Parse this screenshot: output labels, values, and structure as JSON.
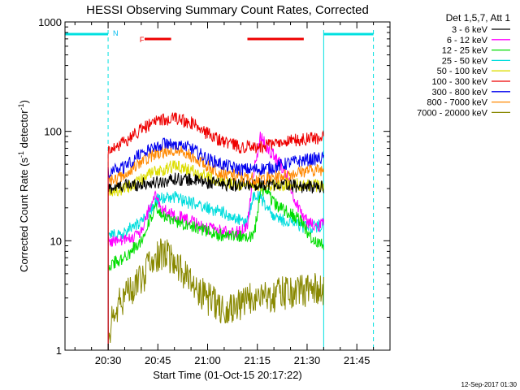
{
  "chart_data": {
    "type": "line",
    "title": "HESSI Observing Summary Count Rates, Corrected",
    "xlabel": "Start Time (01-Oct-15 20:17:22)",
    "ylabel_main": "Corrected Count Rate (s",
    "ylabel_sup1": "-1",
    "ylabel_mid": " detector",
    "ylabel_sup2": "-1",
    "ylabel_end": ")",
    "yscale": "log",
    "ylim": [
      1,
      1000
    ],
    "xlim_min": [
      17,
      92
    ],
    "x_ticks": [
      {
        "min": 30,
        "label": "20:30"
      },
      {
        "min": 45,
        "label": "20:45"
      },
      {
        "min": 60,
        "label": "21:00"
      },
      {
        "min": 75,
        "label": "21:15"
      },
      {
        "min": 90,
        "label": "21:30"
      },
      {
        "min": 105,
        "label": "21:45"
      }
    ],
    "y_ticks": [
      {
        "value": 1,
        "label": "1"
      },
      {
        "value": 10,
        "label": "10"
      },
      {
        "value": 100,
        "label": "100"
      },
      {
        "value": 1000,
        "label": "1000"
      }
    ],
    "legend_title": "Det 1,5,7, Att 1",
    "legend": [
      {
        "label": "3 - 6 keV",
        "color": "#000000"
      },
      {
        "label": "6 - 12 keV",
        "color": "#ff00ff"
      },
      {
        "label": "12 - 25 keV",
        "color": "#00dd00"
      },
      {
        "label": "25 - 50 keV",
        "color": "#00dddd"
      },
      {
        "label": "50 - 100 keV",
        "color": "#dddd00"
      },
      {
        "label": "100 - 300 keV",
        "color": "#ee0000"
      },
      {
        "label": "300 - 800 keV",
        "color": "#0000ee"
      },
      {
        "label": "800 - 7000 keV",
        "color": "#ff8800"
      },
      {
        "label": "7000 - 20000 keV",
        "color": "#888800"
      }
    ],
    "series": [
      {
        "name": "3 - 6 keV",
        "color": "#000000",
        "x": [
          30,
          35,
          40,
          45,
          50,
          55,
          60,
          65,
          70,
          75,
          80,
          85,
          90,
          95
        ],
        "y": [
          30,
          32,
          33,
          34,
          37,
          36,
          34,
          33,
          32,
          33,
          33,
          32,
          31,
          31
        ]
      },
      {
        "name": "6 - 12 keV",
        "color": "#ff00ff",
        "x": [
          30,
          35,
          40,
          42,
          44,
          46,
          50,
          55,
          60,
          65,
          70,
          72,
          74,
          76,
          78,
          80,
          82,
          84,
          86,
          88,
          90,
          92,
          95
        ],
        "y": [
          10,
          10,
          12,
          18,
          26,
          20,
          17,
          15,
          13,
          12,
          12,
          14,
          45,
          90,
          70,
          60,
          50,
          40,
          25,
          18,
          15,
          14,
          14
        ]
      },
      {
        "name": "12 - 25 keV",
        "color": "#00dd00",
        "x": [
          30,
          35,
          40,
          44,
          46,
          50,
          55,
          60,
          65,
          70,
          74,
          76,
          78,
          80,
          82,
          85,
          88,
          90,
          92,
          95
        ],
        "y": [
          6,
          7,
          10,
          20,
          17,
          15,
          14,
          12,
          11,
          11,
          11,
          30,
          28,
          22,
          20,
          18,
          15,
          12,
          10,
          9
        ]
      },
      {
        "name": "25 - 50 keV",
        "color": "#00dddd",
        "x": [
          30,
          35,
          40,
          45,
          50,
          55,
          60,
          65,
          70,
          72,
          74,
          76,
          80,
          85,
          90,
          95
        ],
        "y": [
          11,
          12,
          15,
          24,
          25,
          22,
          20,
          18,
          15,
          15,
          26,
          25,
          16,
          15,
          13,
          14
        ]
      },
      {
        "name": "50 - 100 keV",
        "color": "#dddd00",
        "x": [
          30,
          35,
          40,
          45,
          50,
          55,
          60,
          65,
          70,
          75,
          80,
          85,
          90,
          95
        ],
        "y": [
          28,
          30,
          36,
          44,
          48,
          44,
          38,
          34,
          32,
          31,
          32,
          33,
          32,
          32
        ]
      },
      {
        "name": "100 - 300 keV",
        "color": "#ee0000",
        "x": [
          30,
          35,
          40,
          45,
          50,
          55,
          60,
          65,
          70,
          75,
          80,
          85,
          90,
          95
        ],
        "y": [
          68,
          80,
          105,
          125,
          130,
          120,
          95,
          80,
          72,
          72,
          76,
          82,
          85,
          88
        ]
      },
      {
        "name": "300 - 800 keV",
        "color": "#0000ee",
        "x": [
          30,
          35,
          40,
          45,
          50,
          55,
          60,
          65,
          70,
          75,
          80,
          85,
          90,
          95
        ],
        "y": [
          42,
          48,
          63,
          75,
          78,
          70,
          56,
          49,
          45,
          45,
          47,
          52,
          55,
          57
        ]
      },
      {
        "name": "800 - 7000 keV",
        "color": "#ff8800",
        "x": [
          30,
          35,
          40,
          45,
          50,
          55,
          60,
          65,
          70,
          75,
          80,
          85,
          90,
          95
        ],
        "y": [
          35,
          40,
          52,
          64,
          68,
          60,
          48,
          41,
          38,
          37,
          38,
          41,
          44,
          45
        ]
      },
      {
        "name": "7000 - 20000 keV",
        "color": "#888800",
        "x": [
          30,
          33,
          36,
          40,
          43,
          46,
          50,
          53,
          56,
          60,
          63,
          66,
          70,
          73,
          76,
          80,
          83,
          86,
          90,
          93,
          95
        ],
        "y": [
          1.5,
          2.5,
          3.5,
          4.5,
          6,
          7.5,
          7,
          5,
          4,
          3,
          2.5,
          2.5,
          2.5,
          3,
          3.2,
          3.2,
          3.3,
          3.5,
          3.6,
          3.6,
          3.6
        ]
      }
    ],
    "markers": {
      "night_label": "N",
      "flare_label": "F",
      "night_color": "#00e0e0",
      "flare_color": "#ee0000",
      "night_solid_lines_min": [
        17,
        95
      ],
      "night_dashed_lines_min": [
        30,
        110
      ],
      "night_bars_min": [
        [
          17,
          30
        ],
        [
          95,
          110
        ]
      ],
      "flare_bars_min": [
        [
          41,
          49
        ],
        [
          72,
          89
        ]
      ]
    }
  },
  "footer": {
    "date": "12-Sep-2017 01:30"
  }
}
